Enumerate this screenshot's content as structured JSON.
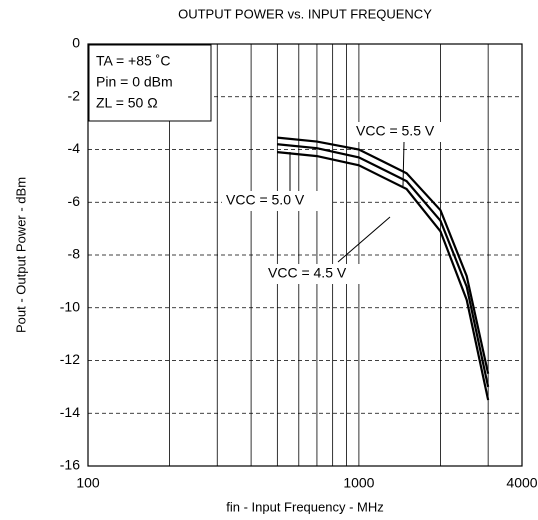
{
  "chart_data": {
    "type": "line",
    "title": "OUTPUT POWER vs. INPUT FREQUENCY",
    "x_label": "fin - Input Frequency - MHz",
    "y_label": "Pout - Output Power - dBm",
    "log_x": true,
    "xlim": [
      100,
      4000
    ],
    "xticks": [
      100,
      1000,
      4000
    ],
    "xgrid": [
      200,
      300,
      400,
      500,
      600,
      700,
      800,
      900,
      2000,
      3000
    ],
    "ylim": [
      -16,
      0
    ],
    "yticks": [
      -16,
      -14,
      -12,
      -10,
      -8,
      -6,
      -4,
      -2,
      0
    ],
    "grid": true,
    "x": [
      500,
      700,
      1000,
      1500,
      2000,
      2500,
      3000
    ],
    "series": [
      {
        "name": "VCC = 5.5 V",
        "color": "#000000",
        "values": [
          -3.55,
          -3.7,
          -4.0,
          -4.9,
          -6.3,
          -8.8,
          -12.5
        ]
      },
      {
        "name": "VCC = 5.0 V",
        "color": "#000000",
        "values": [
          -3.8,
          -3.95,
          -4.3,
          -5.2,
          -6.7,
          -9.2,
          -13.0
        ]
      },
      {
        "name": "VCC = 4.5 V",
        "color": "#000000",
        "values": [
          -4.1,
          -4.25,
          -4.6,
          -5.5,
          -7.1,
          -9.7,
          -13.5
        ]
      }
    ],
    "conditions": [
      "TA = +85 ˚C",
      "Pin = 0 dBm",
      "ZL = 50 Ω"
    ]
  }
}
